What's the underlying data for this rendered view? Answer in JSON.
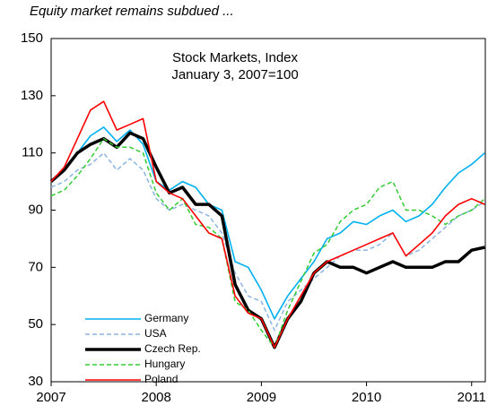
{
  "chart_data": {
    "type": "line",
    "title": "Equity market remains subdued ...",
    "annotation": [
      "Stock Markets, Index",
      "January 3, 2007=100"
    ],
    "x": [
      2007,
      2007.125,
      2007.25,
      2007.375,
      2007.5,
      2007.625,
      2007.75,
      2007.875,
      2008,
      2008.125,
      2008.25,
      2008.375,
      2008.5,
      2008.625,
      2008.75,
      2008.875,
      2009,
      2009.125,
      2009.25,
      2009.375,
      2009.5,
      2009.625,
      2009.75,
      2009.875,
      2010,
      2010.125,
      2010.25,
      2010.375,
      2010.5,
      2010.625,
      2010.75,
      2010.875,
      2011,
      2011.125
    ],
    "series": [
      {
        "name": "Germany",
        "color": "#00b0f0",
        "style": "solid",
        "values": [
          100,
          104,
          110,
          116,
          119,
          114,
          118,
          113,
          100,
          97,
          100,
          98,
          92,
          90,
          72,
          70,
          62,
          52,
          60,
          66,
          72,
          80,
          82,
          86,
          85,
          88,
          90,
          86,
          88,
          92,
          98,
          103,
          106,
          110
        ]
      },
      {
        "name": "USA",
        "color": "#8db4e2",
        "style": "dashed",
        "values": [
          98,
          100,
          104,
          106,
          110,
          104,
          108,
          104,
          94,
          90,
          92,
          90,
          88,
          82,
          68,
          60,
          58,
          48,
          58,
          62,
          66,
          70,
          74,
          76,
          76,
          78,
          82,
          74,
          76,
          80,
          84,
          88,
          90,
          93
        ]
      },
      {
        "name": "Czech Rep.",
        "color": "#000000",
        "style": "bold",
        "values": [
          100,
          104,
          110,
          113,
          115,
          112,
          117,
          115,
          105,
          96,
          98,
          92,
          92,
          88,
          64,
          55,
          52,
          42,
          52,
          58,
          68,
          72,
          70,
          70,
          68,
          70,
          72,
          70,
          70,
          70,
          72,
          72,
          76,
          77
        ]
      },
      {
        "name": "Hungary",
        "color": "#33cc33",
        "style": "dashed",
        "values": [
          95,
          97,
          102,
          108,
          115,
          112,
          112,
          110,
          96,
          90,
          94,
          85,
          84,
          80,
          58,
          55,
          48,
          42,
          55,
          65,
          75,
          78,
          86,
          90,
          92,
          98,
          100,
          90,
          90,
          88,
          85,
          88,
          90,
          94
        ]
      },
      {
        "name": "Poland",
        "color": "#ff0000",
        "style": "solid",
        "values": [
          100,
          105,
          115,
          125,
          128,
          118,
          120,
          122,
          100,
          96,
          94,
          88,
          82,
          80,
          60,
          54,
          52,
          42,
          52,
          60,
          68,
          72,
          74,
          76,
          78,
          80,
          82,
          74,
          78,
          82,
          88,
          92,
          94,
          92
        ]
      }
    ],
    "xlim": [
      2007,
      2011.13
    ],
    "xticks": [
      2007,
      2008,
      2009,
      2010,
      2011
    ],
    "ylim": [
      30,
      150
    ],
    "yticks": [
      30,
      50,
      70,
      90,
      110,
      130,
      150
    ],
    "grid": false,
    "legend": "lower-left"
  }
}
